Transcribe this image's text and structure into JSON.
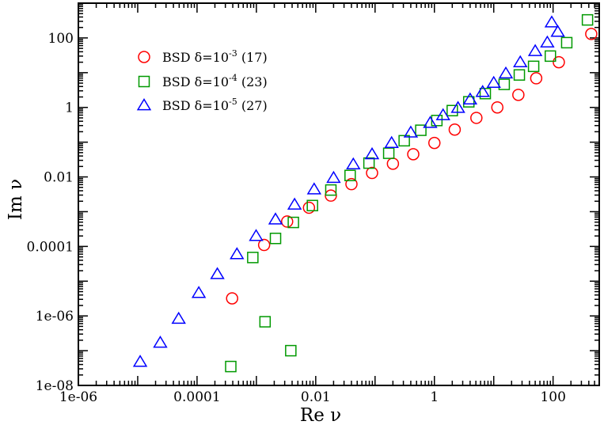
{
  "chart_data": {
    "type": "scatter",
    "title": "",
    "xlabel": "Re ν",
    "ylabel": "Im ν",
    "xscale": "log",
    "yscale": "log",
    "xlim": [
      1e-06,
      600
    ],
    "ylim": [
      1e-08,
      1000
    ],
    "grid": false,
    "legend_position": "top-left",
    "xticks": [
      {
        "value": 1e-06,
        "label": "1e-06"
      },
      {
        "value": 0.0001,
        "label": "0.0001"
      },
      {
        "value": 0.01,
        "label": "0.01"
      },
      {
        "value": 1,
        "label": "1"
      },
      {
        "value": 100,
        "label": "100"
      }
    ],
    "yticks": [
      {
        "value": 1e-08,
        "label": "1e-08"
      },
      {
        "value": 1e-06,
        "label": "1e-06"
      },
      {
        "value": 0.0001,
        "label": "0.0001"
      },
      {
        "value": 0.01,
        "label": "0.01"
      },
      {
        "value": 1,
        "label": "1"
      },
      {
        "value": 100,
        "label": "100"
      }
    ],
    "series": [
      {
        "name": "BSD δ=10",
        "legend_exponent": "-3",
        "legend_count": "(17)",
        "marker": "circle",
        "color": "#ff0000",
        "x": [
          0.00039,
          0.00135,
          0.0033,
          0.0077,
          0.018,
          0.04,
          0.089,
          0.2,
          0.44,
          1.0,
          2.2,
          5.1,
          11.5,
          26,
          52,
          125,
          440
        ],
        "y": [
          3.2e-06,
          0.00011,
          0.00052,
          0.0013,
          0.0029,
          0.0062,
          0.013,
          0.024,
          0.045,
          0.095,
          0.23,
          0.5,
          1.0,
          2.3,
          6.9,
          20,
          130
        ]
      },
      {
        "name": "BSD δ=10",
        "legend_exponent": "-4",
        "legend_count": "(23)",
        "marker": "square",
        "color": "#009900",
        "x": [
          0.00037,
          0.0014,
          0.0038,
          0.00087,
          0.0021,
          0.0042,
          0.0088,
          0.018,
          0.038,
          0.079,
          0.17,
          0.31,
          0.59,
          1.1,
          2.0,
          3.8,
          7.2,
          15,
          27,
          47,
          90,
          170,
          380
        ],
        "y": [
          3.5e-08,
          6.8e-07,
          1e-07,
          4.8e-05,
          0.00017,
          0.00049,
          0.0015,
          0.0042,
          0.011,
          0.025,
          0.048,
          0.11,
          0.22,
          0.42,
          0.81,
          1.45,
          2.5,
          4.6,
          8.6,
          15.2,
          30,
          73,
          330
        ]
      },
      {
        "name": "BSD δ=10",
        "legend_exponent": "-5",
        "legend_count": "(27)",
        "marker": "triangle",
        "color": "#0000ff",
        "x": [
          1.1e-05,
          2.4e-05,
          4.9e-05,
          0.000107,
          0.00022,
          0.00047,
          0.00099,
          0.0021,
          0.0044,
          0.0094,
          0.02,
          0.043,
          0.089,
          0.19,
          0.4,
          0.85,
          1.4,
          2.5,
          4.0,
          6.5,
          10,
          16,
          28,
          50,
          80,
          95,
          120
        ],
        "y": [
          4.8e-08,
          1.7e-07,
          8.3e-07,
          4.6e-06,
          1.6e-05,
          6e-05,
          0.0002,
          0.0006,
          0.0016,
          0.0044,
          0.0094,
          0.023,
          0.045,
          0.095,
          0.19,
          0.36,
          0.6,
          0.97,
          1.7,
          2.8,
          5.1,
          9.5,
          20,
          42,
          74,
          280,
          150
        ]
      }
    ]
  }
}
